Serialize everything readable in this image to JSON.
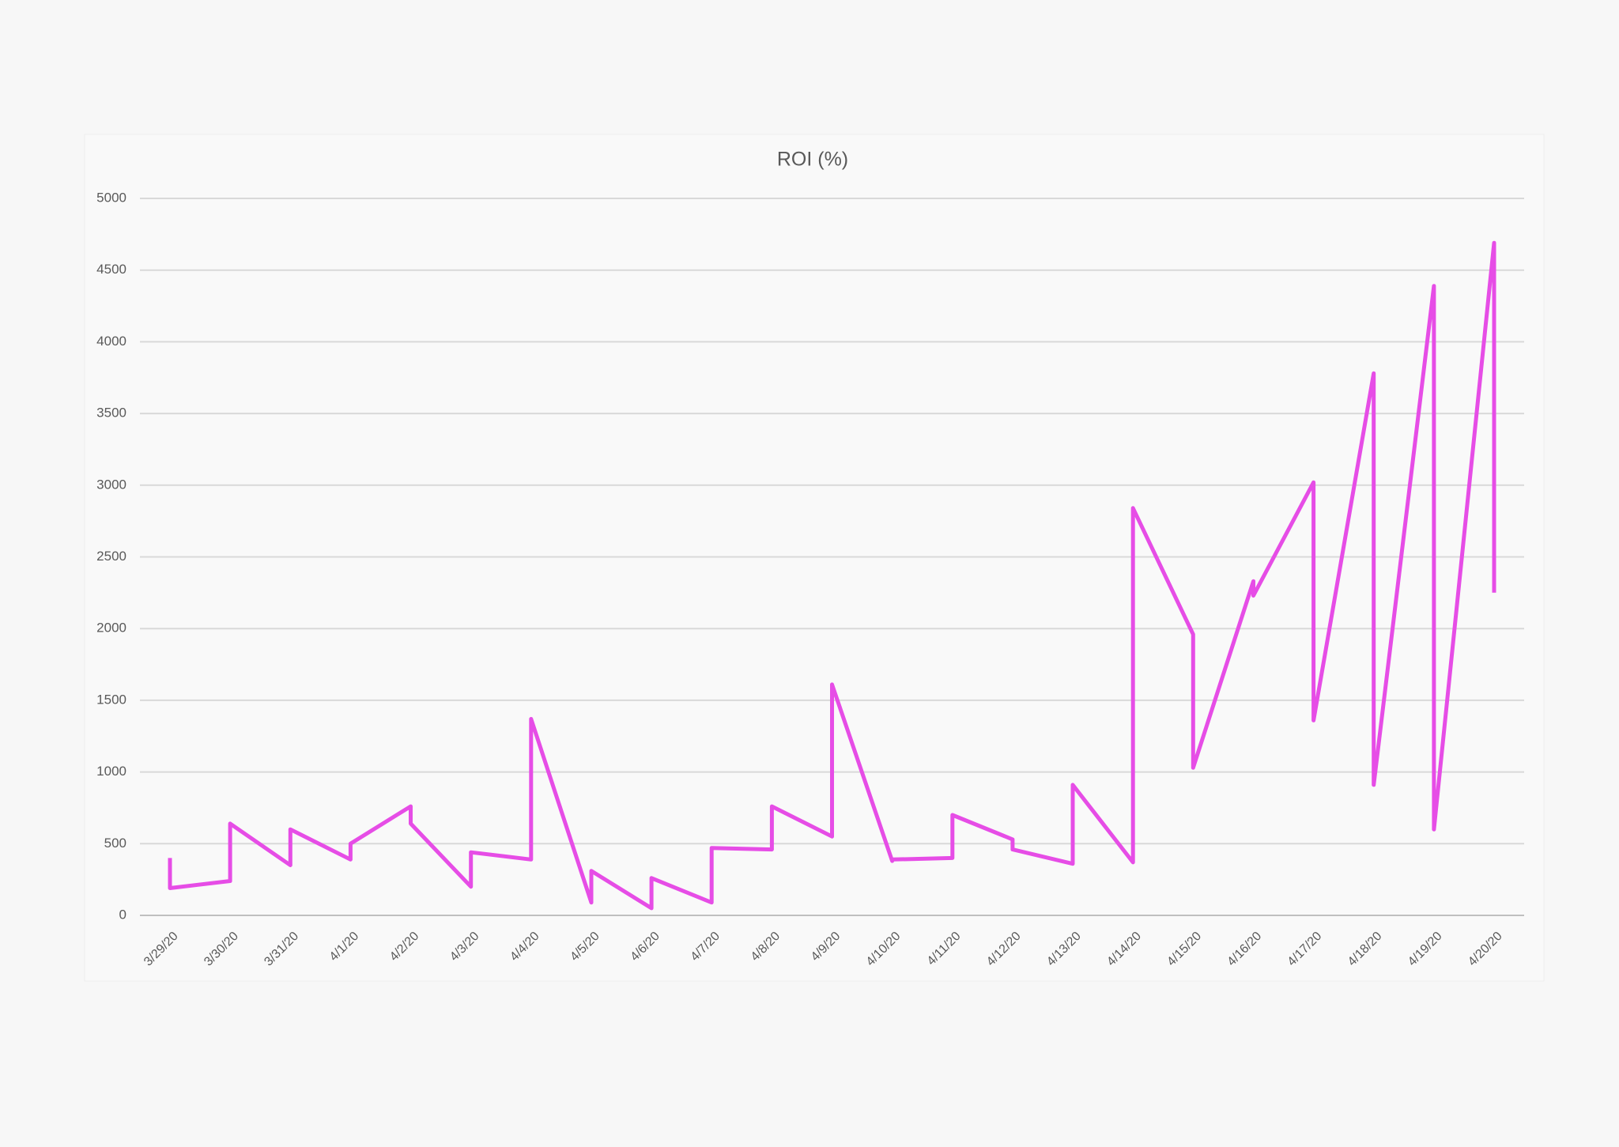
{
  "chart_data": {
    "type": "line",
    "title": "ROI (%)",
    "x": [
      "3/29/20",
      "3/29/20",
      "3/30/20",
      "3/30/20",
      "3/31/20",
      "3/31/20",
      "4/1/20",
      "4/1/20",
      "4/2/20",
      "4/2/20",
      "4/3/20",
      "4/3/20",
      "4/4/20",
      "4/4/20",
      "4/5/20",
      "4/5/20",
      "4/6/20",
      "4/6/20",
      "4/7/20",
      "4/7/20",
      "4/8/20",
      "4/8/20",
      "4/9/20",
      "4/9/20",
      "4/10/20",
      "4/10/20",
      "4/11/20",
      "4/11/20",
      "4/12/20",
      "4/12/20",
      "4/13/20",
      "4/13/20",
      "4/14/20",
      "4/14/20",
      "4/15/20",
      "4/15/20",
      "4/16/20",
      "4/16/20",
      "4/17/20",
      "4/17/20",
      "4/18/20",
      "4/18/20",
      "4/19/20",
      "4/19/20",
      "4/20/20",
      "4/20/20"
    ],
    "series": [
      {
        "name": "ROI (%)",
        "color": "#e64de6",
        "values": [
          400,
          190,
          240,
          640,
          350,
          600,
          390,
          500,
          760,
          640,
          200,
          440,
          390,
          1370,
          90,
          310,
          50,
          260,
          90,
          470,
          460,
          760,
          550,
          1610,
          380,
          390,
          400,
          700,
          530,
          460,
          360,
          910,
          370,
          2840,
          1960,
          1030,
          2330,
          2230,
          3020,
          1360,
          3780,
          910,
          4390,
          600,
          4690,
          2250
        ]
      }
    ],
    "ylim": [
      0,
      5000
    ],
    "yticks": [
      0,
      500,
      1000,
      1500,
      2000,
      2500,
      3000,
      3500,
      4000,
      4500,
      5000
    ],
    "grid": true
  }
}
